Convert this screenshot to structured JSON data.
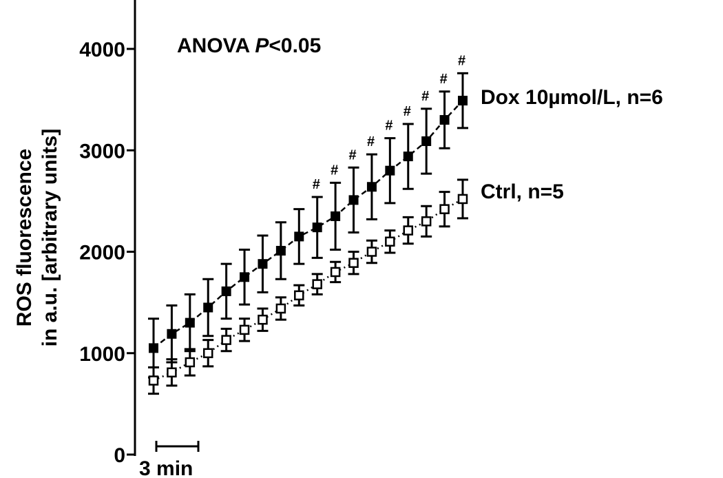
{
  "chart_data": {
    "type": "errorbar-line",
    "y_label": [
      "ROS fluorescence",
      "in a.u. [arbitrary units]"
    ],
    "annotation": [
      "ANOVA ",
      "P",
      "<0.05"
    ],
    "scale_bar": "3 min",
    "ylim": [
      0,
      4500
    ],
    "yticks": [
      0,
      1000,
      2000,
      3000,
      4000
    ],
    "categories": [
      null,
      null,
      null,
      null,
      null,
      null,
      null,
      null,
      null,
      null,
      null,
      null,
      null,
      null,
      null,
      null,
      null,
      null
    ],
    "markers": [
      null,
      null,
      null,
      null,
      null,
      null,
      null,
      null,
      null,
      "#",
      "#",
      "#",
      "#",
      "#",
      "#",
      "#",
      "#",
      "#"
    ],
    "series": [
      {
        "name": "Dox 10µmol/L, n=6",
        "color": "#000000",
        "marker": "filled",
        "linestyle": "dashed",
        "values": [
          1050,
          1190,
          1300,
          1450,
          1610,
          1750,
          1880,
          2010,
          2150,
          2240,
          2350,
          2510,
          2640,
          2800,
          2940,
          3090,
          3300,
          3490
        ],
        "errors": [
          290,
          280,
          280,
          280,
          270,
          270,
          280,
          280,
          270,
          300,
          330,
          320,
          320,
          320,
          320,
          320,
          280,
          270
        ]
      },
      {
        "name": "Ctrl, n=5",
        "color": "#000000",
        "marker": "open",
        "linestyle": "dotted",
        "values": [
          730,
          810,
          910,
          1000,
          1130,
          1230,
          1330,
          1440,
          1570,
          1680,
          1800,
          1890,
          2000,
          2100,
          2210,
          2300,
          2420,
          2520
        ],
        "errors": [
          130,
          130,
          130,
          130,
          110,
          110,
          110,
          110,
          100,
          100,
          100,
          110,
          110,
          110,
          130,
          150,
          170,
          190
        ]
      }
    ]
  }
}
